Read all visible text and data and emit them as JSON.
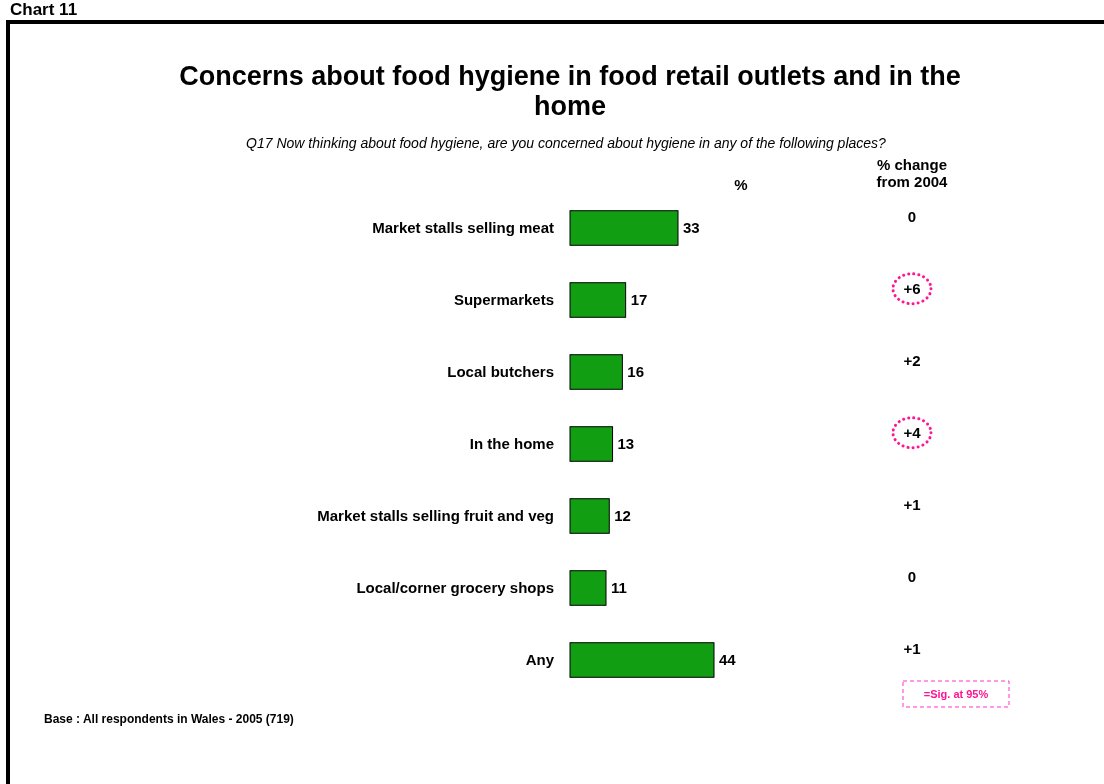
{
  "chart_data": {
    "type": "bar",
    "orientation": "horizontal",
    "title": "Concerns about food hygiene in food retail outlets and in the home",
    "subtitle": "Q17 Now thinking about food hygiene, are you concerned about hygiene in any of the following places?",
    "categories": [
      "Market stalls selling meat",
      "Supermarkets",
      "Local butchers",
      "In the home",
      "Market stalls selling fruit and veg",
      "Local/corner grocery shops",
      "Any"
    ],
    "values": [
      33,
      17,
      16,
      13,
      12,
      11,
      44
    ],
    "color": "#129e12",
    "data_labels": true,
    "annotations": [
      "Chart 11",
      "%",
      "% change from 2004",
      "0",
      "+6",
      "+2",
      "+4",
      "+1",
      "0",
      "+1",
      "=Sig. at 95%",
      "Base : All respondents in Wales - 2005 (719)"
    ]
  }
}
